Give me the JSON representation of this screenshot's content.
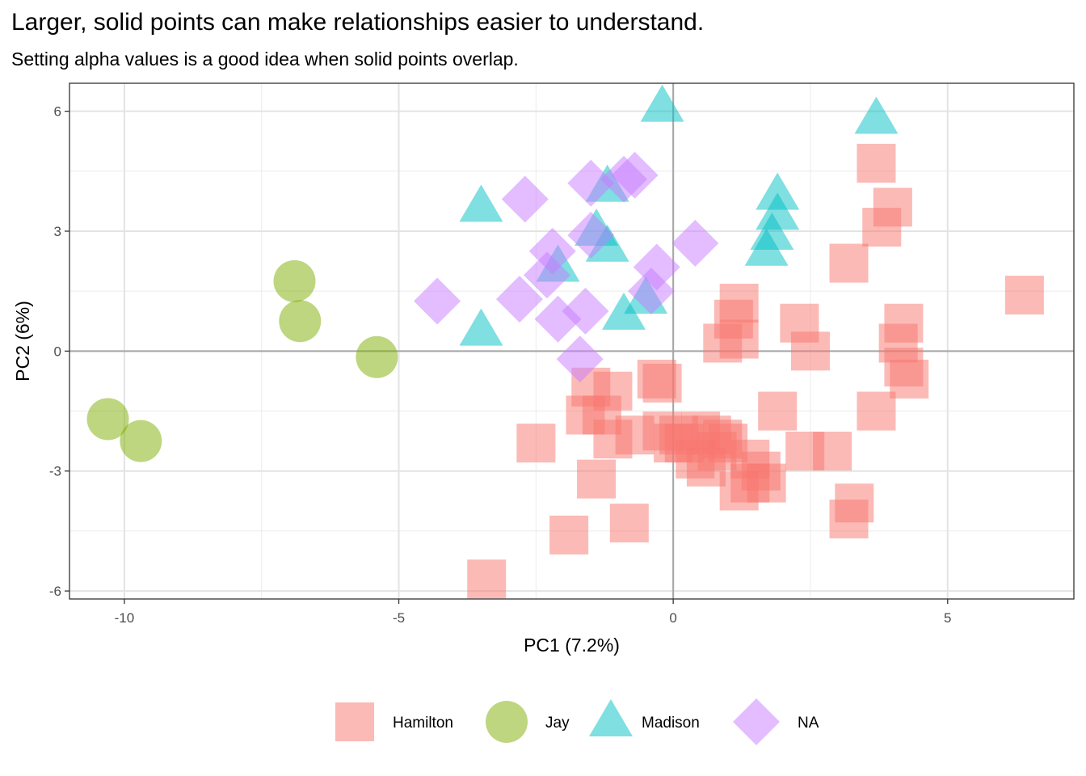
{
  "chart_data": {
    "type": "scatter",
    "title": "Larger, solid points can make relationships easier to understand.",
    "subtitle": "Setting alpha values is a good idea when solid points overlap.",
    "xlabel": "PC1 (7.2%)",
    "ylabel": "PC2 (6%)",
    "xlim": [
      -11.0,
      7.3
    ],
    "ylim": [
      -6.2,
      6.7
    ],
    "x_ticks": [
      -10,
      -5,
      0,
      5
    ],
    "x_tick_labels": [
      "-10",
      "-5",
      "0",
      "5"
    ],
    "y_ticks": [
      -6,
      -3,
      0,
      3,
      6
    ],
    "y_tick_labels": [
      "-6",
      "-3",
      "0",
      "3",
      "6"
    ],
    "grid": true,
    "reference_lines": {
      "x": 0,
      "y": 0
    },
    "alpha": 0.5,
    "legend_position": "bottom",
    "series": [
      {
        "name": "Hamilton",
        "shape": "square",
        "color": "#F8766D",
        "points": [
          [
            3.7,
            4.7
          ],
          [
            4.0,
            3.6
          ],
          [
            3.8,
            3.1
          ],
          [
            3.2,
            2.2
          ],
          [
            6.4,
            1.4
          ],
          [
            1.2,
            1.2
          ],
          [
            1.1,
            0.8
          ],
          [
            0.9,
            0.2
          ],
          [
            1.2,
            0.3
          ],
          [
            2.3,
            0.7
          ],
          [
            2.5,
            0.0
          ],
          [
            4.2,
            0.7
          ],
          [
            4.1,
            0.2
          ],
          [
            4.3,
            -0.7
          ],
          [
            4.2,
            -0.4
          ],
          [
            -1.5,
            -0.9
          ],
          [
            -1.1,
            -1.0
          ],
          [
            -0.3,
            -0.7
          ],
          [
            -0.2,
            -0.8
          ],
          [
            -1.6,
            -1.6
          ],
          [
            -1.3,
            -1.6
          ],
          [
            -1.1,
            -2.2
          ],
          [
            -0.7,
            -2.1
          ],
          [
            -0.2,
            -2.0
          ],
          [
            0.1,
            -2.1
          ],
          [
            0.2,
            -2.3
          ],
          [
            0.5,
            -2.0
          ],
          [
            0.7,
            -2.1
          ],
          [
            0.9,
            -2.2
          ],
          [
            1.0,
            -2.3
          ],
          [
            0.8,
            -2.5
          ],
          [
            0.4,
            -2.7
          ],
          [
            0.6,
            -2.9
          ],
          [
            1.4,
            -2.7
          ],
          [
            1.6,
            -3.0
          ],
          [
            1.4,
            -3.3
          ],
          [
            1.7,
            -3.3
          ],
          [
            1.2,
            -3.5
          ],
          [
            1.9,
            -1.5
          ],
          [
            2.9,
            -2.5
          ],
          [
            2.4,
            -2.5
          ],
          [
            3.7,
            -1.5
          ],
          [
            3.3,
            -3.8
          ],
          [
            3.2,
            -4.2
          ],
          [
            -2.5,
            -2.3
          ],
          [
            -1.4,
            -3.2
          ],
          [
            -0.8,
            -4.3
          ],
          [
            -1.9,
            -4.6
          ],
          [
            -3.4,
            -5.7
          ],
          [
            0.0,
            -2.3
          ]
        ]
      },
      {
        "name": "Jay",
        "shape": "circle",
        "color": "#7CAE00",
        "points": [
          [
            -6.9,
            1.75
          ],
          [
            -6.8,
            0.75
          ],
          [
            -5.4,
            -0.15
          ],
          [
            -10.3,
            -1.7
          ],
          [
            -9.7,
            -2.25
          ]
        ]
      },
      {
        "name": "Madison",
        "shape": "triangle",
        "color": "#00BFC4",
        "points": [
          [
            -0.2,
            6.1
          ],
          [
            3.7,
            5.8
          ],
          [
            -3.5,
            3.6
          ],
          [
            -1.2,
            4.1
          ],
          [
            -1.4,
            3.0
          ],
          [
            -1.2,
            2.6
          ],
          [
            -2.1,
            2.1
          ],
          [
            -3.5,
            0.5
          ],
          [
            -0.9,
            0.9
          ],
          [
            -0.5,
            1.3
          ],
          [
            1.9,
            3.9
          ],
          [
            1.9,
            3.4
          ],
          [
            1.8,
            2.9
          ],
          [
            1.7,
            2.5
          ]
        ]
      },
      {
        "name": "NA",
        "shape": "diamond",
        "color": "#C77CFF",
        "points": [
          [
            -2.7,
            3.8
          ],
          [
            -1.5,
            4.2
          ],
          [
            -0.9,
            4.3
          ],
          [
            -0.7,
            4.4
          ],
          [
            -1.5,
            2.9
          ],
          [
            -2.2,
            2.5
          ],
          [
            -2.3,
            1.9
          ],
          [
            0.4,
            2.7
          ],
          [
            -0.3,
            2.1
          ],
          [
            -0.4,
            1.5
          ],
          [
            -4.3,
            1.25
          ],
          [
            -2.8,
            1.3
          ],
          [
            -2.1,
            0.8
          ],
          [
            -1.6,
            1.0
          ],
          [
            -1.7,
            -0.2
          ]
        ]
      }
    ]
  }
}
